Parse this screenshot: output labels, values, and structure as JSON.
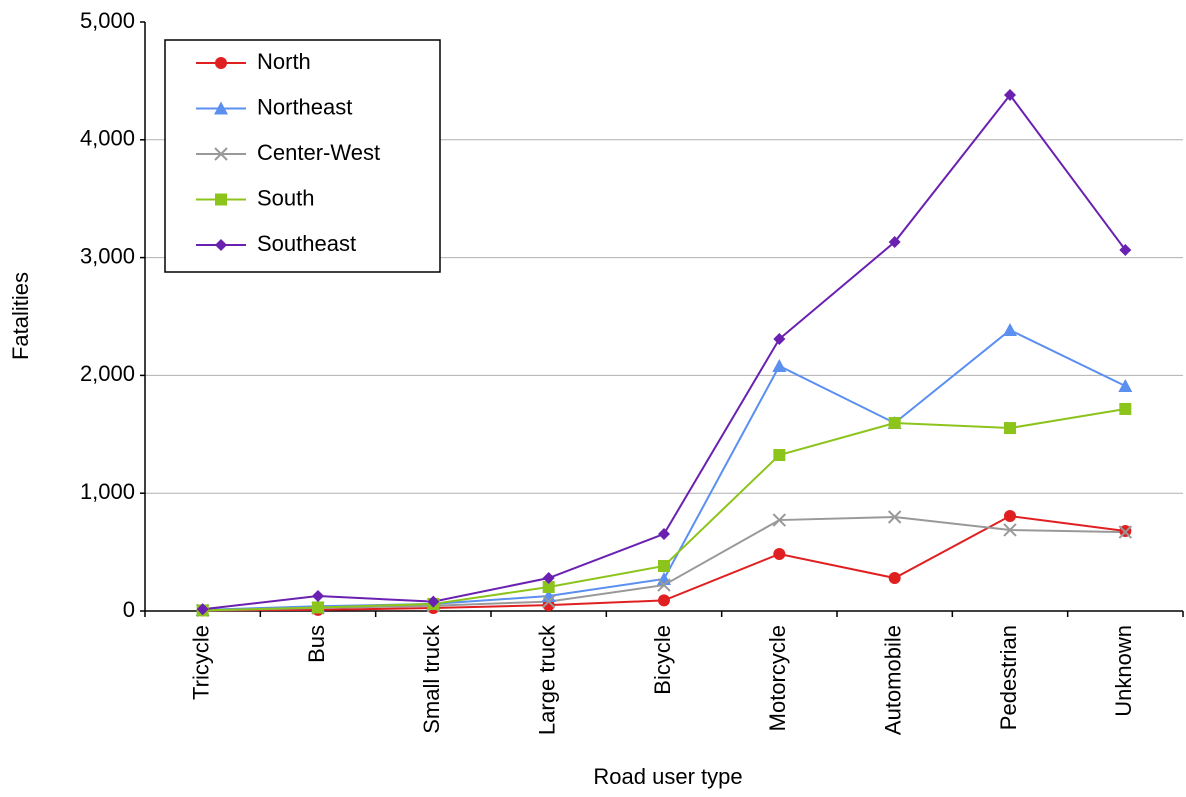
{
  "chart_data": {
    "type": "line",
    "x_label": "Road user type",
    "y_label": "Fatalities",
    "categories": [
      "Tricycle",
      "Bus",
      "Small truck",
      "Large truck",
      "Bicycle",
      "Motorcycle",
      "Automobile",
      "Pedestrian",
      "Unknown"
    ],
    "series": [
      {
        "name": "North",
        "color": "#e02020",
        "marker": "circle",
        "values": [
          5,
          10,
          25,
          50,
          90,
          484,
          280,
          806,
          679
        ]
      },
      {
        "name": "Northeast",
        "color": "#5b8ff0",
        "marker": "triangle",
        "values": [
          10,
          40,
          60,
          127,
          272,
          2080,
          1596,
          2385,
          1910
        ]
      },
      {
        "name": "Center-West",
        "color": "#999999",
        "marker": "x",
        "values": [
          5,
          25,
          45,
          80,
          220,
          772,
          798,
          688,
          670
        ]
      },
      {
        "name": "South",
        "color": "#8cc41c",
        "marker": "square",
        "values": [
          5,
          30,
          60,
          204,
          382,
          1324,
          1596,
          1553,
          1715
        ]
      },
      {
        "name": "Southeast",
        "color": "#6a20b0",
        "marker": "diamond",
        "values": [
          15,
          127,
          80,
          280,
          654,
          2309,
          3132,
          4380,
          3065
        ]
      }
    ],
    "ylim": [
      0,
      5000
    ],
    "yticks": [
      0,
      {
        "value": 1000,
        "label": "1,000"
      },
      {
        "value": 2000,
        "label": "2,000"
      },
      {
        "value": 3000,
        "label": "3,000"
      },
      {
        "value": 4000,
        "label": "4,000"
      },
      {
        "value": 5000,
        "label": "5,000"
      }
    ],
    "grid": true,
    "legend": "top-left"
  }
}
